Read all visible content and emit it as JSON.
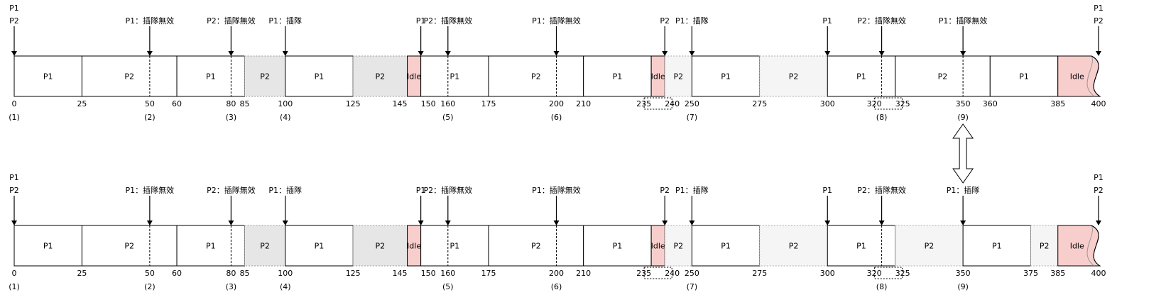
{
  "timelines": [
    {
      "segments": [
        {
          "start": 0,
          "end": 25,
          "label": "P1",
          "kind": "run"
        },
        {
          "start": 25,
          "end": 60,
          "label": "P2",
          "kind": "run"
        },
        {
          "start": 60,
          "end": 85,
          "label": "P1",
          "kind": "run"
        },
        {
          "start": 85,
          "end": 100,
          "label": "P2",
          "kind": "preempted"
        },
        {
          "start": 100,
          "end": 125,
          "label": "P1",
          "kind": "run"
        },
        {
          "start": 125,
          "end": 145,
          "label": "P2",
          "kind": "preempted"
        },
        {
          "start": 145,
          "end": 150,
          "label": "Idle",
          "kind": "idle"
        },
        {
          "start": 150,
          "end": 175,
          "label": "P1",
          "kind": "run"
        },
        {
          "start": 175,
          "end": 210,
          "label": "P2",
          "kind": "run"
        },
        {
          "start": 210,
          "end": 235,
          "label": "P1",
          "kind": "run"
        },
        {
          "start": 235,
          "end": 240,
          "label": "Idle",
          "kind": "idle"
        },
        {
          "start": 240,
          "end": 250,
          "label": "P2",
          "kind": "preempted-light"
        },
        {
          "start": 250,
          "end": 275,
          "label": "P1",
          "kind": "run"
        },
        {
          "start": 275,
          "end": 300,
          "label": "P2",
          "kind": "preempted-light"
        },
        {
          "start": 300,
          "end": 325,
          "label": "P1",
          "kind": "run"
        },
        {
          "start": 325,
          "end": 360,
          "label": "P2",
          "kind": "run"
        },
        {
          "start": 360,
          "end": 385,
          "label": "P1",
          "kind": "run"
        },
        {
          "start": 385,
          "end": 400,
          "label": "Idle",
          "kind": "idle-end"
        }
      ],
      "dashed_marks": [
        50,
        80,
        160,
        200,
        320,
        350
      ],
      "ticks": [
        {
          "t": 0,
          "label": "0"
        },
        {
          "t": 25,
          "label": "25"
        },
        {
          "t": 50,
          "label": "50"
        },
        {
          "t": 60,
          "label": "60"
        },
        {
          "t": 80,
          "label": "80"
        },
        {
          "t": 85,
          "label": "85"
        },
        {
          "t": 100,
          "label": "100"
        },
        {
          "t": 125,
          "label": "125"
        },
        {
          "t": 145,
          "label": "145"
        },
        {
          "t": 150,
          "label": "150"
        },
        {
          "t": 160,
          "label": "160"
        },
        {
          "t": 175,
          "label": "175"
        },
        {
          "t": 200,
          "label": "200"
        },
        {
          "t": 210,
          "label": "210"
        },
        {
          "t": 235,
          "label": "235"
        },
        {
          "t": 240,
          "label": "240"
        },
        {
          "t": 250,
          "label": "250"
        },
        {
          "t": 275,
          "label": "275"
        },
        {
          "t": 300,
          "label": "300"
        },
        {
          "t": 320,
          "label": "320"
        },
        {
          "t": 325,
          "label": "325"
        },
        {
          "t": 350,
          "label": "350"
        },
        {
          "t": 360,
          "label": "360"
        },
        {
          "t": 385,
          "label": "385"
        },
        {
          "t": 400,
          "label": "400"
        }
      ],
      "boxed_tick_pairs": [
        [
          235,
          240
        ],
        [
          320,
          325
        ]
      ],
      "step_labels": [
        {
          "t": 0,
          "label": "(1)"
        },
        {
          "t": 50,
          "label": "(2)"
        },
        {
          "t": 80,
          "label": "(3)"
        },
        {
          "t": 100,
          "label": "(4)"
        },
        {
          "t": 160,
          "label": "(5)"
        },
        {
          "t": 200,
          "label": "(6)"
        },
        {
          "t": 250,
          "label": "(7)"
        },
        {
          "t": 320,
          "label": "(8)"
        },
        {
          "t": 350,
          "label": "(9)"
        }
      ],
      "arrows": [
        {
          "t": 0,
          "lines": [
            "P1",
            "P2"
          ]
        },
        {
          "t": 50,
          "lines": [
            "P1：插隊無效"
          ]
        },
        {
          "t": 80,
          "lines": [
            "P2：插隊無效"
          ]
        },
        {
          "t": 100,
          "lines": [
            "P1：插隊"
          ]
        },
        {
          "t": 150,
          "lines": [
            "P1"
          ]
        },
        {
          "t": 160,
          "lines": [
            "P2：插隊無效"
          ]
        },
        {
          "t": 200,
          "lines": [
            "P1：插隊無效"
          ]
        },
        {
          "t": 240,
          "lines": [
            "P2"
          ]
        },
        {
          "t": 250,
          "lines": [
            "P1：插隊"
          ]
        },
        {
          "t": 300,
          "lines": [
            "P1"
          ]
        },
        {
          "t": 320,
          "lines": [
            "P2：插隊無效"
          ]
        },
        {
          "t": 350,
          "lines": [
            "P1：插隊無效"
          ]
        },
        {
          "t": 400,
          "lines": [
            "P1",
            "P2"
          ]
        }
      ]
    },
    {
      "segments": [
        {
          "start": 0,
          "end": 25,
          "label": "P1",
          "kind": "run"
        },
        {
          "start": 25,
          "end": 60,
          "label": "P2",
          "kind": "run"
        },
        {
          "start": 60,
          "end": 85,
          "label": "P1",
          "kind": "run"
        },
        {
          "start": 85,
          "end": 100,
          "label": "P2",
          "kind": "preempted"
        },
        {
          "start": 100,
          "end": 125,
          "label": "P1",
          "kind": "run"
        },
        {
          "start": 125,
          "end": 145,
          "label": "P2",
          "kind": "preempted"
        },
        {
          "start": 145,
          "end": 150,
          "label": "Idle",
          "kind": "idle"
        },
        {
          "start": 150,
          "end": 175,
          "label": "P1",
          "kind": "run"
        },
        {
          "start": 175,
          "end": 210,
          "label": "P2",
          "kind": "run"
        },
        {
          "start": 210,
          "end": 235,
          "label": "P1",
          "kind": "run"
        },
        {
          "start": 235,
          "end": 240,
          "label": "Idle",
          "kind": "idle"
        },
        {
          "start": 240,
          "end": 250,
          "label": "P2",
          "kind": "preempted-light"
        },
        {
          "start": 250,
          "end": 275,
          "label": "P1",
          "kind": "run"
        },
        {
          "start": 275,
          "end": 300,
          "label": "P2",
          "kind": "preempted-light"
        },
        {
          "start": 300,
          "end": 325,
          "label": "P1",
          "kind": "run"
        },
        {
          "start": 325,
          "end": 350,
          "label": "P2",
          "kind": "preempted-light"
        },
        {
          "start": 350,
          "end": 375,
          "label": "P1",
          "kind": "run"
        },
        {
          "start": 375,
          "end": 385,
          "label": "P2",
          "kind": "preempted-light"
        },
        {
          "start": 385,
          "end": 400,
          "label": "Idle",
          "kind": "idle-end"
        }
      ],
      "dashed_marks": [
        50,
        80,
        160,
        200,
        320
      ],
      "ticks": [
        {
          "t": 0,
          "label": "0"
        },
        {
          "t": 25,
          "label": "25"
        },
        {
          "t": 50,
          "label": "50"
        },
        {
          "t": 60,
          "label": "60"
        },
        {
          "t": 80,
          "label": "80"
        },
        {
          "t": 85,
          "label": "85"
        },
        {
          "t": 100,
          "label": "100"
        },
        {
          "t": 125,
          "label": "125"
        },
        {
          "t": 145,
          "label": "145"
        },
        {
          "t": 150,
          "label": "150"
        },
        {
          "t": 160,
          "label": "160"
        },
        {
          "t": 175,
          "label": "175"
        },
        {
          "t": 200,
          "label": "200"
        },
        {
          "t": 210,
          "label": "210"
        },
        {
          "t": 235,
          "label": "235"
        },
        {
          "t": 240,
          "label": "240"
        },
        {
          "t": 250,
          "label": "250"
        },
        {
          "t": 275,
          "label": "275"
        },
        {
          "t": 300,
          "label": "300"
        },
        {
          "t": 320,
          "label": "320"
        },
        {
          "t": 325,
          "label": "325"
        },
        {
          "t": 350,
          "label": "350"
        },
        {
          "t": 375,
          "label": "375"
        },
        {
          "t": 385,
          "label": "385"
        },
        {
          "t": 400,
          "label": "400"
        }
      ],
      "boxed_tick_pairs": [
        [
          235,
          240
        ],
        [
          320,
          325
        ]
      ],
      "step_labels": [
        {
          "t": 0,
          "label": "(1)"
        },
        {
          "t": 50,
          "label": "(2)"
        },
        {
          "t": 80,
          "label": "(3)"
        },
        {
          "t": 100,
          "label": "(4)"
        },
        {
          "t": 160,
          "label": "(5)"
        },
        {
          "t": 200,
          "label": "(6)"
        },
        {
          "t": 250,
          "label": "(7)"
        },
        {
          "t": 320,
          "label": "(8)"
        },
        {
          "t": 350,
          "label": "(9)"
        }
      ],
      "arrows": [
        {
          "t": 0,
          "lines": [
            "P1",
            "P2"
          ]
        },
        {
          "t": 50,
          "lines": [
            "P1：插隊無效"
          ]
        },
        {
          "t": 80,
          "lines": [
            "P2：插隊無效"
          ]
        },
        {
          "t": 100,
          "lines": [
            "P1：插隊"
          ]
        },
        {
          "t": 150,
          "lines": [
            "P1"
          ]
        },
        {
          "t": 160,
          "lines": [
            "P2：插隊無效"
          ]
        },
        {
          "t": 200,
          "lines": [
            "P1：插隊無效"
          ]
        },
        {
          "t": 240,
          "lines": [
            "P2"
          ]
        },
        {
          "t": 250,
          "lines": [
            "P1：插隊"
          ]
        },
        {
          "t": 300,
          "lines": [
            "P1"
          ]
        },
        {
          "t": 320,
          "lines": [
            "P2：插隊無效"
          ]
        },
        {
          "t": 350,
          "lines": [
            "P1：插隊"
          ]
        },
        {
          "t": 400,
          "lines": [
            "P1",
            "P2"
          ]
        }
      ]
    }
  ],
  "compare_arrow_t": 350,
  "colors": {
    "stroke": "#000000",
    "run_fill": "#ffffff",
    "preempted_fill": "#e6e6e6",
    "preempted_light_fill": "#f5f5f5",
    "idle_fill": "#f8cecc",
    "idle_stroke": "#b85450",
    "dashed_stroke": "#000000"
  }
}
